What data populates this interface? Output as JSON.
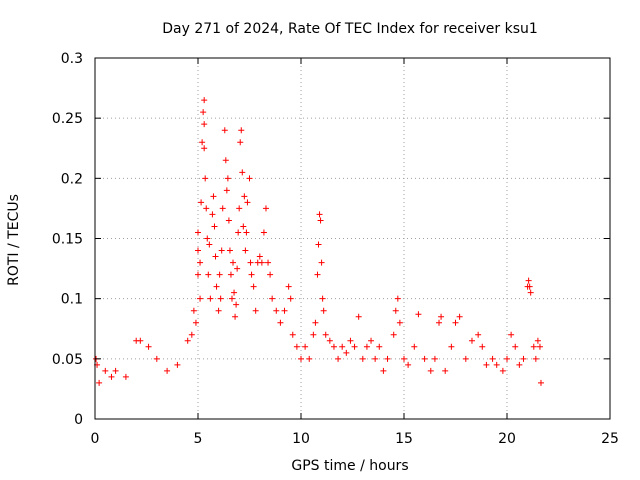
{
  "chart_data": {
    "type": "scatter",
    "title": "Day 271 of 2024, Rate Of TEC Index for receiver ksu1",
    "xlabel": "GPS time / hours",
    "ylabel": "ROTI / TECUs",
    "xlim": [
      0,
      25
    ],
    "ylim": [
      0,
      0.3
    ],
    "xticks": [
      "0",
      "5",
      "10",
      "15",
      "20",
      "25"
    ],
    "yticks": [
      "0",
      "0.05",
      "0.1",
      "0.15",
      "0.2",
      "0.25",
      "0.3"
    ],
    "grid": true,
    "marker": "+",
    "series_color": "#ff0000",
    "series": [
      {
        "values": [
          [
            0.05,
            0.05
          ],
          [
            0.1,
            0.045
          ],
          [
            0.2,
            0.03
          ],
          [
            0.5,
            0.04
          ],
          [
            0.8,
            0.035
          ],
          [
            1.0,
            0.04
          ],
          [
            1.5,
            0.035
          ],
          [
            2.0,
            0.065
          ],
          [
            2.2,
            0.065
          ],
          [
            2.6,
            0.06
          ],
          [
            3.0,
            0.05
          ],
          [
            3.5,
            0.04
          ],
          [
            4.0,
            0.045
          ],
          [
            4.5,
            0.065
          ],
          [
            4.7,
            0.07
          ],
          [
            4.8,
            0.09
          ],
          [
            4.9,
            0.08
          ],
          [
            5.0,
            0.12
          ],
          [
            5.0,
            0.155
          ],
          [
            5.0,
            0.14
          ],
          [
            5.1,
            0.1
          ],
          [
            5.1,
            0.13
          ],
          [
            5.15,
            0.18
          ],
          [
            5.2,
            0.23
          ],
          [
            5.25,
            0.255
          ],
          [
            5.3,
            0.265
          ],
          [
            5.3,
            0.245
          ],
          [
            5.3,
            0.225
          ],
          [
            5.35,
            0.2
          ],
          [
            5.4,
            0.175
          ],
          [
            5.45,
            0.15
          ],
          [
            5.5,
            0.12
          ],
          [
            5.55,
            0.145
          ],
          [
            5.6,
            0.1
          ],
          [
            5.7,
            0.17
          ],
          [
            5.75,
            0.185
          ],
          [
            5.8,
            0.16
          ],
          [
            5.85,
            0.135
          ],
          [
            5.9,
            0.11
          ],
          [
            6.0,
            0.09
          ],
          [
            6.05,
            0.12
          ],
          [
            6.1,
            0.1
          ],
          [
            6.15,
            0.14
          ],
          [
            6.2,
            0.175
          ],
          [
            6.3,
            0.24
          ],
          [
            6.35,
            0.215
          ],
          [
            6.4,
            0.19
          ],
          [
            6.45,
            0.2
          ],
          [
            6.5,
            0.165
          ],
          [
            6.55,
            0.14
          ],
          [
            6.6,
            0.12
          ],
          [
            6.65,
            0.1
          ],
          [
            6.7,
            0.13
          ],
          [
            6.75,
            0.105
          ],
          [
            6.8,
            0.085
          ],
          [
            6.85,
            0.095
          ],
          [
            6.9,
            0.125
          ],
          [
            6.95,
            0.155
          ],
          [
            7.0,
            0.175
          ],
          [
            7.05,
            0.23
          ],
          [
            7.1,
            0.24
          ],
          [
            7.15,
            0.205
          ],
          [
            7.2,
            0.16
          ],
          [
            7.25,
            0.185
          ],
          [
            7.3,
            0.14
          ],
          [
            7.35,
            0.155
          ],
          [
            7.4,
            0.18
          ],
          [
            7.5,
            0.2
          ],
          [
            7.55,
            0.13
          ],
          [
            7.6,
            0.12
          ],
          [
            7.7,
            0.11
          ],
          [
            7.8,
            0.09
          ],
          [
            7.9,
            0.13
          ],
          [
            8.0,
            0.135
          ],
          [
            8.1,
            0.13
          ],
          [
            8.2,
            0.155
          ],
          [
            8.3,
            0.175
          ],
          [
            8.4,
            0.13
          ],
          [
            8.5,
            0.12
          ],
          [
            8.6,
            0.1
          ],
          [
            8.8,
            0.09
          ],
          [
            9.0,
            0.08
          ],
          [
            9.2,
            0.09
          ],
          [
            9.4,
            0.11
          ],
          [
            9.5,
            0.1
          ],
          [
            9.6,
            0.07
          ],
          [
            9.8,
            0.06
          ],
          [
            10.0,
            0.05
          ],
          [
            10.2,
            0.06
          ],
          [
            10.4,
            0.05
          ],
          [
            10.6,
            0.07
          ],
          [
            10.7,
            0.08
          ],
          [
            10.8,
            0.12
          ],
          [
            10.85,
            0.145
          ],
          [
            10.9,
            0.17
          ],
          [
            10.95,
            0.165
          ],
          [
            11.0,
            0.13
          ],
          [
            11.05,
            0.1
          ],
          [
            11.1,
            0.09
          ],
          [
            11.2,
            0.07
          ],
          [
            11.4,
            0.065
          ],
          [
            11.6,
            0.06
          ],
          [
            11.8,
            0.05
          ],
          [
            12.0,
            0.06
          ],
          [
            12.2,
            0.055
          ],
          [
            12.4,
            0.065
          ],
          [
            12.6,
            0.06
          ],
          [
            12.8,
            0.085
          ],
          [
            13.0,
            0.05
          ],
          [
            13.2,
            0.06
          ],
          [
            13.4,
            0.065
          ],
          [
            13.6,
            0.05
          ],
          [
            13.8,
            0.06
          ],
          [
            14.0,
            0.04
          ],
          [
            14.2,
            0.05
          ],
          [
            14.5,
            0.07
          ],
          [
            14.6,
            0.09
          ],
          [
            14.7,
            0.1
          ],
          [
            14.8,
            0.08
          ],
          [
            15.0,
            0.05
          ],
          [
            15.2,
            0.045
          ],
          [
            15.5,
            0.06
          ],
          [
            15.7,
            0.087
          ],
          [
            16.0,
            0.05
          ],
          [
            16.3,
            0.04
          ],
          [
            16.5,
            0.05
          ],
          [
            16.7,
            0.08
          ],
          [
            16.8,
            0.085
          ],
          [
            17.0,
            0.04
          ],
          [
            17.3,
            0.06
          ],
          [
            17.5,
            0.08
          ],
          [
            17.7,
            0.085
          ],
          [
            18.0,
            0.05
          ],
          [
            18.3,
            0.065
          ],
          [
            18.6,
            0.07
          ],
          [
            18.8,
            0.06
          ],
          [
            19.0,
            0.045
          ],
          [
            19.3,
            0.05
          ],
          [
            19.5,
            0.045
          ],
          [
            19.8,
            0.04
          ],
          [
            20.0,
            0.05
          ],
          [
            20.2,
            0.07
          ],
          [
            20.4,
            0.06
          ],
          [
            20.6,
            0.045
          ],
          [
            20.8,
            0.05
          ],
          [
            21.0,
            0.11
          ],
          [
            21.05,
            0.115
          ],
          [
            21.1,
            0.11
          ],
          [
            21.15,
            0.105
          ],
          [
            21.3,
            0.06
          ],
          [
            21.4,
            0.05
          ],
          [
            21.5,
            0.065
          ],
          [
            21.6,
            0.06
          ],
          [
            21.65,
            0.03
          ]
        ]
      }
    ]
  }
}
